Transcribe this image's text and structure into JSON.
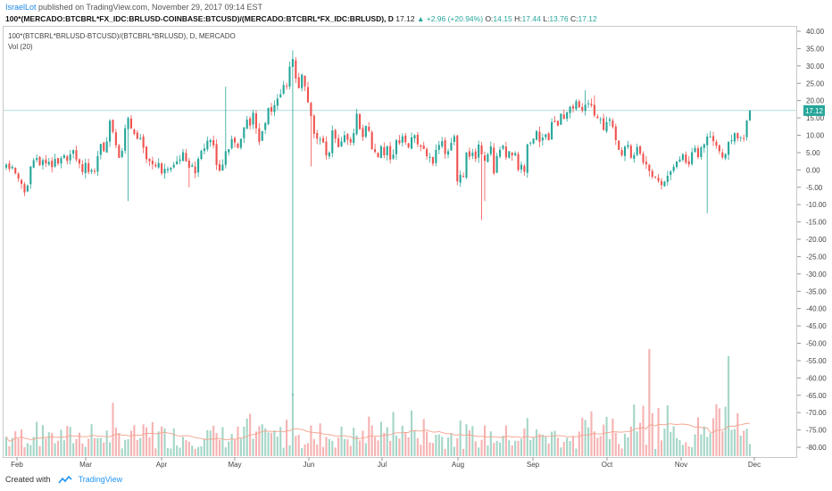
{
  "header": {
    "author": "IsraelLot",
    "published": "published on TradingView.com, November 29, 2017 09:14 EST",
    "symbol": "100*(MERCADO:BTCBRL*FX_IDC:BRLUSD-COINBASE:BTCUSD)/(MERCADO:BTCBRL*FX_IDC:BRLUSD), D",
    "last": "17.12",
    "change": "▲ +2.96 (+20.94%)",
    "o_label": "O:",
    "o": "14.15",
    "h_label": "H:",
    "h": "17.44",
    "l_label": "L:",
    "l": "13.76",
    "c_label": "C:",
    "c": "17.12"
  },
  "studies": {
    "main": "100*(BTCBRL*BRLUSD-BTCUSD)/(BTCBRL*BRLUSD), D, MERCADO",
    "volume": "Vol (20)"
  },
  "footer": {
    "created_with": "Created with",
    "brand": "TradingView"
  },
  "colors": {
    "up": "#26a69a",
    "down": "#ef5350",
    "up_vol": "#a5d6c8",
    "down_vol": "#f6b3b3",
    "vol_ma": "#f4a28c",
    "last_line": "#26a69a"
  },
  "chart_data": {
    "type": "candlestick",
    "y_ticks": [
      "40.00",
      "35.00",
      "30.00",
      "25.00",
      "20.00",
      "15.00",
      "10.00",
      "5.00",
      "0.00",
      "-5.00",
      "-10.00",
      "-15.00",
      "-20.00",
      "-25.00",
      "-30.00",
      "-35.00",
      "-40.00",
      "-45.00",
      "-50.00",
      "-55.00",
      "-60.00",
      "-65.00",
      "-70.00",
      "-75.00",
      "-80.00"
    ],
    "x_ticks": [
      "Feb",
      "Mar",
      "Apr",
      "May",
      "Jun",
      "Jul",
      "Aug",
      "Sep",
      "Oct",
      "Nov",
      "Dec"
    ],
    "ylim": [
      -82,
      41
    ],
    "last_price_label": "17.12",
    "closes": [
      1.5,
      0.3,
      0.9,
      -1.0,
      -2.5,
      -4.0,
      -6.5,
      -4.5,
      1.0,
      2.8,
      3.4,
      1.4,
      2.8,
      1.9,
      2.3,
      0.8,
      3.2,
      1.8,
      3.4,
      4.2,
      2.6,
      4.5,
      5.7,
      3.0,
      1.8,
      -0.6,
      2.0,
      -0.6,
      0.0,
      -0.5,
      4.0,
      7.5,
      5.4,
      8.2,
      14.2,
      11.0,
      7.1,
      3.5,
      5.5,
      12.0,
      15.0,
      12.0,
      10.4,
      9.0,
      9.2,
      6.4,
      3.1,
      2.5,
      1.6,
      1.0,
      2.0,
      -1.0,
      0.3,
      0.3,
      0.6,
      1.5,
      2.5,
      3.0,
      5.1,
      2.5,
      0.6,
      1.3,
      -1.0,
      3.2,
      5.5,
      6.2,
      8.4,
      8.6,
      7.1,
      1.4,
      -0.2,
      1.5,
      5.4,
      6.0,
      8.9,
      7.9,
      6.4,
      9.0,
      12.3,
      14.5,
      12.8,
      16.5,
      12.0,
      8.1,
      11.2,
      13.5,
      17.9,
      16.8,
      18.7,
      20.6,
      21.8,
      24.5,
      24.0,
      29.8,
      32.0,
      26.4,
      23.6,
      27.5,
      24.1,
      19.5,
      15.5,
      10.4,
      9.0,
      8.8,
      7.9,
      4.2,
      5.0,
      11.4,
      9.0,
      6.6,
      8.2,
      10.0,
      8.7,
      7.9,
      10.6,
      16.2,
      11.8,
      9.5,
      12.7,
      11.3,
      6.0,
      5.2,
      3.7,
      6.8,
      4.2,
      6.8,
      3.0,
      4.4,
      8.6,
      7.7,
      9.7,
      8.0,
      6.5,
      9.4,
      10.0,
      7.4,
      6.7,
      6.0,
      3.9,
      3.7,
      1.8,
      5.8,
      7.2,
      8.3,
      4.6,
      5.4,
      7.8,
      9.7,
      -3.3,
      -1.4,
      -2.0,
      5.0,
      3.8,
      5.0,
      3.2,
      7.3,
      4.5,
      2.6,
      4.5,
      6.8,
      -1.0,
      4.0,
      5.8,
      7.0,
      3.6,
      5.4,
      4.2,
      4.8,
      0.0,
      1.5,
      -0.5,
      7.4,
      7.9,
      9.0,
      11.2,
      8.1,
      9.3,
      10.3,
      8.6,
      13.8,
      13.8,
      12.8,
      16.2,
      14.7,
      16.6,
      18.2,
      17.7,
      19.8,
      18.0,
      17.2,
      18.8,
      19.2,
      18.6,
      15.7,
      14.9,
      14.6,
      11.5,
      13.8,
      14.6,
      12.4,
      8.6,
      5.8,
      4.2,
      6.7,
      7.2,
      3.5,
      4.3,
      6.6,
      4.7,
      2.1,
      1.6,
      -0.3,
      -2.0,
      -2.0,
      -3.2,
      -4.4,
      -3.4,
      -1.7,
      -0.4,
      0.9,
      2.4,
      3.0,
      4.5,
      2.1,
      1.6,
      5.1,
      6.3,
      3.7,
      6.5,
      7.4,
      9.6,
      9.6,
      8.3,
      7.0,
      5.4,
      3.6,
      4.6,
      8.1,
      8.6,
      10.6,
      9.1,
      9.5,
      9.1,
      14.2,
      17.12
    ],
    "volume_ma_label": "Vol (20)"
  }
}
